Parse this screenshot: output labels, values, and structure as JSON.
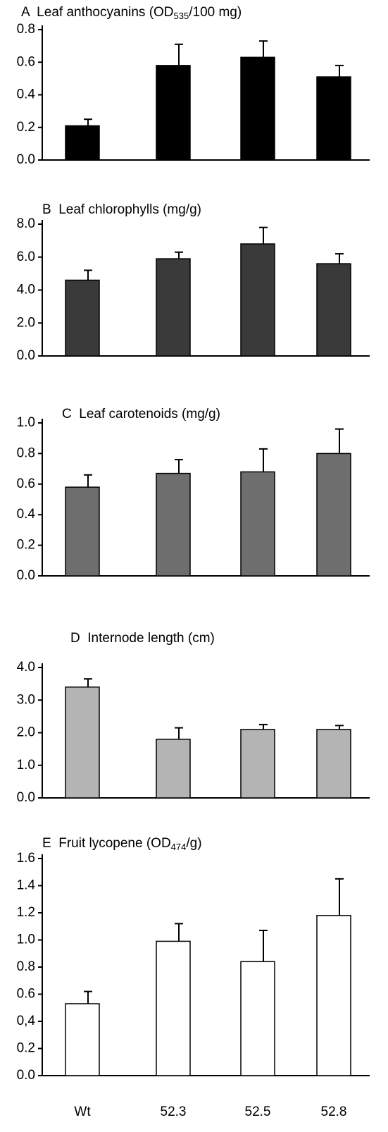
{
  "chart_data": [
    {
      "type": "bar",
      "title": [
        "A  Leaf anthocyanins (OD",
        "535",
        "/100 mg)"
      ],
      "categories": [
        null,
        null,
        null,
        null
      ],
      "values": [
        0.21,
        0.58,
        0.63,
        0.51
      ],
      "errors": [
        0.04,
        0.13,
        0.1,
        0.07
      ],
      "color": "#000000",
      "ylim": [
        0,
        0.8
      ],
      "yticks": [
        {
          "value": 0,
          "label": "0.0"
        },
        0.2,
        0.4,
        0.6,
        0.8
      ]
    },
    {
      "type": "bar",
      "title": [
        "B  Leaf chlorophylls (mg/g)"
      ],
      "categories": [
        null,
        null,
        null,
        null
      ],
      "values": [
        4.6,
        5.9,
        6.8,
        5.6
      ],
      "errors": [
        0.6,
        0.4,
        1.0,
        0.6
      ],
      "color": "#3a3a3a",
      "ylim": [
        0,
        8
      ],
      "yticks": [
        {
          "value": 0,
          "label": "0.0"
        },
        {
          "value": 2,
          "label": "2.0"
        },
        {
          "value": 4,
          "label": "4.0"
        },
        {
          "value": 6,
          "label": "6.0"
        },
        {
          "value": 8,
          "label": "8.0"
        }
      ]
    },
    {
      "type": "bar",
      "title": [
        "C  Leaf carotenoids (mg/g)"
      ],
      "categories": [
        null,
        null,
        null,
        null
      ],
      "values": [
        0.58,
        0.67,
        0.68,
        0.8
      ],
      "errors": [
        0.08,
        0.09,
        0.15,
        0.16
      ],
      "color": "#6e6e6e",
      "ylim": [
        0,
        1
      ],
      "yticks": [
        {
          "value": 0,
          "label": "0.0"
        },
        0.2,
        0.4,
        0.6,
        0.8,
        {
          "value": 1,
          "label": "1.0"
        }
      ]
    },
    {
      "type": "bar",
      "title": [
        "D  Internode length (cm)"
      ],
      "categories": [
        null,
        null,
        null,
        null
      ],
      "values": [
        3.4,
        1.8,
        2.1,
        2.1
      ],
      "errors": [
        0.25,
        0.35,
        0.15,
        0.12
      ],
      "color": "#b4b4b4",
      "ylim": [
        0,
        4
      ],
      "yticks": [
        {
          "value": 0,
          "label": "0.0"
        },
        {
          "value": 1,
          "label": "1.0"
        },
        {
          "value": 2,
          "label": "2.0"
        },
        {
          "value": 3,
          "label": "3.0"
        },
        {
          "value": 4,
          "label": "4.0"
        }
      ]
    },
    {
      "type": "bar",
      "title": [
        "E  Fruit lycopene (OD",
        "474",
        "/g)"
      ],
      "categories": [
        "Wt",
        "52.3",
        "52.5",
        "52.8"
      ],
      "values": [
        0.53,
        0.99,
        0.84,
        1.18
      ],
      "errors": [
        0.09,
        0.13,
        0.23,
        0.27
      ],
      "color": "#ffffff",
      "ylim": [
        0,
        1.6
      ],
      "yticks": [
        {
          "value": 0,
          "label": "0.0"
        },
        0.2,
        {
          "value": 0.4,
          "label": "0,4"
        },
        0.6,
        0.8,
        {
          "value": 1,
          "label": "1.0"
        },
        1.2,
        1.4,
        1.6
      ]
    }
  ]
}
